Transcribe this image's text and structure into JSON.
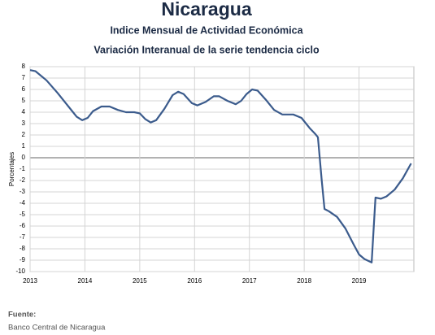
{
  "chart_data": {
    "type": "line",
    "title": "Nicaragua",
    "subtitle": "Indice Mensual de  Actividad Económica",
    "subtitle2": "Variación Interanual de la serie tendencia ciclo",
    "y_label": "Porcentajes",
    "x": [
      2013.0,
      2013.1,
      2013.3,
      2013.5,
      2013.7,
      2013.85,
      2013.95,
      2014.05,
      2014.15,
      2014.3,
      2014.45,
      2014.6,
      2014.75,
      2014.9,
      2015.0,
      2015.1,
      2015.2,
      2015.3,
      2015.45,
      2015.6,
      2015.7,
      2015.8,
      2015.95,
      2016.05,
      2016.2,
      2016.35,
      2016.45,
      2016.6,
      2016.75,
      2016.85,
      2016.95,
      2017.05,
      2017.15,
      2017.3,
      2017.45,
      2017.6,
      2017.8,
      2017.95,
      2018.1,
      2018.2,
      2018.25,
      2018.32,
      2018.37,
      2018.45,
      2018.6,
      2018.75,
      2018.9,
      2019.0,
      2019.1,
      2019.23,
      2019.3,
      2019.4,
      2019.5,
      2019.65,
      2019.8,
      2019.95
    ],
    "values": [
      7.7,
      7.6,
      6.8,
      5.7,
      4.5,
      3.6,
      3.3,
      3.5,
      4.1,
      4.5,
      4.5,
      4.2,
      4.0,
      4.0,
      3.9,
      3.4,
      3.1,
      3.3,
      4.3,
      5.5,
      5.8,
      5.6,
      4.8,
      4.6,
      4.9,
      5.4,
      5.4,
      5.0,
      4.7,
      5.0,
      5.6,
      6.0,
      5.9,
      5.1,
      4.2,
      3.8,
      3.8,
      3.5,
      2.6,
      2.1,
      1.8,
      -2.0,
      -4.5,
      -4.7,
      -5.2,
      -6.2,
      -7.6,
      -8.5,
      -8.9,
      -9.2,
      -3.5,
      -3.6,
      -3.4,
      -2.8,
      -1.8,
      -0.5
    ],
    "color": "#3b5b8c",
    "xlim": [
      2013,
      2020
    ],
    "xticks": [
      2013,
      2014,
      2015,
      2016,
      2017,
      2018,
      2019
    ],
    "ylim": [
      -10,
      8
    ],
    "yticks": [
      -10,
      -9,
      -8,
      -7,
      -6,
      -5,
      -4,
      -3,
      -2,
      -1,
      0,
      1,
      2,
      3,
      4,
      5,
      6,
      7,
      8
    ],
    "grid": true
  },
  "footer": {
    "label": "Fuente:",
    "source": "Banco Central de Nicaragua"
  }
}
